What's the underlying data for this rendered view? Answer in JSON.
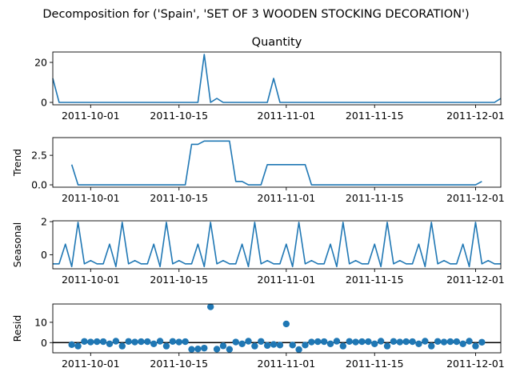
{
  "figure": {
    "suptitle": "Decomposition for ('Spain', 'SET OF 3 WOODEN STOCKING DECORATION')"
  },
  "colors": {
    "series": "#1f77b4",
    "axis": "#000000",
    "zero_line": "#000000"
  },
  "chart_data": [
    {
      "type": "line",
      "title": "Quantity",
      "xlabel": "",
      "ylabel": "",
      "x_start": "2011-09-25",
      "x_end": "2011-12-05",
      "xlim": [
        "2011-09-25",
        "2011-12-05"
      ],
      "ylim": [
        -1.2,
        25.2
      ],
      "yticks": [
        0,
        20
      ],
      "xticks": [
        "2011-10-01",
        "2011-10-15",
        "2011-11-01",
        "2011-11-15",
        "2011-12-01"
      ],
      "grid": false,
      "series": [
        {
          "values": [
            12,
            0,
            0,
            0,
            0,
            0,
            0,
            0,
            0,
            0,
            0,
            0,
            0,
            0,
            0,
            0,
            0,
            0,
            0,
            0,
            0,
            0,
            0,
            0,
            24,
            0,
            2,
            0,
            0,
            0,
            0,
            0,
            0,
            0,
            0,
            12,
            0,
            0,
            0,
            0,
            0,
            0,
            0,
            0,
            0,
            0,
            0,
            0,
            0,
            0,
            0,
            0,
            0,
            0,
            0,
            0,
            0,
            0,
            0,
            0,
            0,
            0,
            0,
            0,
            0,
            0,
            0,
            0,
            0,
            0,
            0,
            2
          ]
        }
      ]
    },
    {
      "type": "line",
      "title": "",
      "xlabel": "",
      "ylabel": "Trend",
      "x_start": "2011-09-25",
      "x_end": "2011-12-05",
      "xlim": [
        "2011-09-25",
        "2011-12-05"
      ],
      "ylim": [
        -0.2,
        4.0
      ],
      "yticks": [
        0.0,
        2.5
      ],
      "ytick_labels": [
        "0.0",
        "2.5"
      ],
      "xticks": [
        "2011-10-01",
        "2011-10-15",
        "2011-11-01",
        "2011-11-15",
        "2011-12-01"
      ],
      "grid": false,
      "series": [
        {
          "values": [
            null,
            null,
            null,
            1.71,
            0,
            0,
            0,
            0,
            0,
            0,
            0,
            0,
            0,
            0,
            0,
            0,
            0,
            0,
            0,
            0,
            0,
            0,
            3.43,
            3.43,
            3.71,
            3.71,
            3.71,
            3.71,
            3.71,
            0.29,
            0.29,
            0,
            0,
            0,
            1.71,
            1.71,
            1.71,
            1.71,
            1.71,
            1.71,
            1.71,
            0,
            0,
            0,
            0,
            0,
            0,
            0,
            0,
            0,
            0,
            0,
            0,
            0,
            0,
            0,
            0,
            0,
            0,
            0,
            0,
            0,
            0,
            0,
            0,
            0,
            0,
            0,
            0.29,
            null,
            null,
            null
          ]
        }
      ]
    },
    {
      "type": "line",
      "title": "",
      "xlabel": "",
      "ylabel": "Seasonal",
      "x_start": "2011-09-25",
      "x_end": "2011-12-05",
      "xlim": [
        "2011-09-25",
        "2011-12-05"
      ],
      "ylim": [
        -0.85,
        2.05
      ],
      "yticks": [
        0,
        2
      ],
      "xticks": [
        "2011-10-01",
        "2011-10-15",
        "2011-11-01",
        "2011-11-15",
        "2011-12-01"
      ],
      "grid": false,
      "series": [
        {
          "values": [
            -0.55,
            -0.55,
            0.64,
            -0.72,
            1.96,
            -0.55,
            -0.35,
            -0.55,
            -0.55,
            0.64,
            -0.72,
            1.96,
            -0.55,
            -0.35,
            -0.55,
            -0.55,
            0.64,
            -0.72,
            1.96,
            -0.55,
            -0.35,
            -0.55,
            -0.55,
            0.64,
            -0.72,
            1.96,
            -0.55,
            -0.35,
            -0.55,
            -0.55,
            0.64,
            -0.72,
            1.96,
            -0.55,
            -0.35,
            -0.55,
            -0.55,
            0.64,
            -0.72,
            1.96,
            -0.55,
            -0.35,
            -0.55,
            -0.55,
            0.64,
            -0.72,
            1.96,
            -0.55,
            -0.35,
            -0.55,
            -0.55,
            0.64,
            -0.72,
            1.96,
            -0.55,
            -0.35,
            -0.55,
            -0.55,
            0.64,
            -0.72,
            1.96,
            -0.55,
            -0.35,
            -0.55,
            -0.55,
            0.64,
            -0.72,
            1.96,
            -0.55,
            -0.35,
            -0.55,
            -0.55
          ]
        }
      ]
    },
    {
      "type": "scatter",
      "title": "",
      "xlabel": "",
      "ylabel": "Resid",
      "x_start": "2011-09-25",
      "x_end": "2011-12-05",
      "xlim": [
        "2011-09-25",
        "2011-12-05"
      ],
      "ylim": [
        -5,
        19
      ],
      "yticks": [
        0,
        10
      ],
      "xticks": [
        "2011-10-01",
        "2011-10-15",
        "2011-11-01",
        "2011-11-15",
        "2011-12-01"
      ],
      "grid": false,
      "zero_line": 0,
      "series": [
        {
          "values": [
            null,
            null,
            null,
            -1.0,
            -1.7,
            0.6,
            0.3,
            0.5,
            0.5,
            -0.6,
            0.7,
            -1.7,
            0.6,
            0.3,
            0.5,
            0.5,
            -0.6,
            0.7,
            -1.7,
            0.6,
            0.3,
            0.5,
            -3.3,
            -3.1,
            -2.7,
            17.6,
            -3.2,
            -1.6,
            -3.3,
            0.3,
            -0.6,
            0.7,
            -1.7,
            0.6,
            -1.4,
            -0.9,
            -1.2,
            9.2,
            -1.2,
            -3.4,
            -1.2,
            0.3,
            0.5,
            0.5,
            -0.6,
            0.7,
            -1.7,
            0.6,
            0.3,
            0.5,
            0.5,
            -0.6,
            0.7,
            -1.7,
            0.6,
            0.3,
            0.5,
            0.5,
            -0.6,
            0.7,
            -1.7,
            0.6,
            0.3,
            0.5,
            0.5,
            -0.6,
            0.7,
            -1.7,
            0.2,
            null,
            null,
            null
          ]
        }
      ]
    }
  ]
}
